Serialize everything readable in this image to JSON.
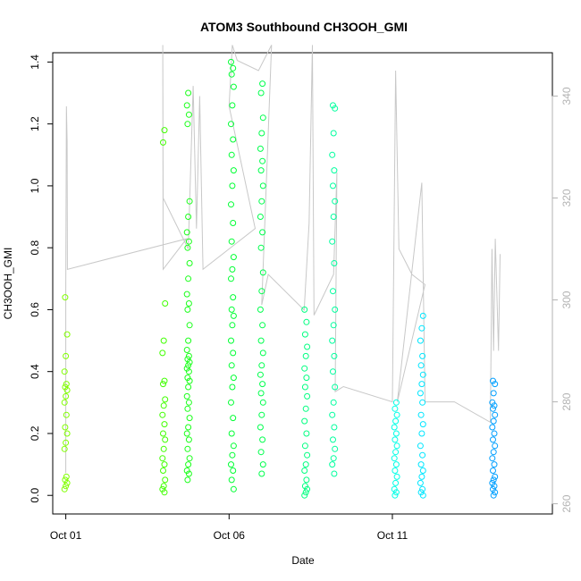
{
  "chart_data": {
    "type": "scatter",
    "title": "ATOM3 Southbound CH3OOH_GMI",
    "xlabel": "Date",
    "ylabel": "CH3OOH_GMI",
    "x_ticks": [
      "Oct 01",
      "Oct 06",
      "Oct 11"
    ],
    "x_tick_values": [
      1,
      6,
      11
    ],
    "xlim": [
      0.6,
      15.9
    ],
    "ylim": [
      -0.06,
      1.43
    ],
    "y_ticks": [
      "0.0",
      "0.2",
      "0.4",
      "0.6",
      "0.8",
      "1.0",
      "1.2",
      "1.4"
    ],
    "y_tick_values": [
      0,
      0.2,
      0.4,
      0.6,
      0.8,
      1.0,
      1.2,
      1.4
    ],
    "y2_ticks": [
      "260",
      "280",
      "300",
      "320",
      "340"
    ],
    "y2_tick_values": [
      260,
      280,
      300,
      320,
      340
    ],
    "y2lim": [
      258,
      348.5
    ],
    "grid": false,
    "legend": "none",
    "colors": {
      "secondary_line": "#c8c8c8",
      "right_axis": "#b3b3b3"
    },
    "point_groups": [
      {
        "x": 1.0,
        "color": "#80ff00",
        "values": [
          0.02,
          0.03,
          0.04,
          0.05,
          0.06,
          0.15,
          0.17,
          0.2,
          0.22,
          0.26,
          0.3,
          0.32,
          0.34,
          0.35,
          0.36,
          0.4,
          0.45,
          0.52,
          0.64
        ]
      },
      {
        "x": 4.0,
        "color": "#40ff00",
        "values": [
          0.01,
          0.02,
          0.03,
          0.05,
          0.08,
          0.1,
          0.12,
          0.15,
          0.18,
          0.2,
          0.23,
          0.26,
          0.29,
          0.31,
          0.36,
          0.37,
          0.46,
          0.5,
          0.62,
          1.14,
          1.18
        ]
      },
      {
        "x": 4.75,
        "color": "#1aff1a",
        "values": [
          0.05,
          0.07,
          0.08,
          0.1,
          0.12,
          0.15,
          0.18,
          0.2,
          0.22,
          0.25,
          0.28,
          0.3,
          0.32,
          0.35,
          0.37,
          0.38,
          0.4,
          0.41,
          0.42,
          0.43,
          0.44,
          0.45,
          0.47,
          0.5,
          0.55,
          0.6,
          0.62,
          0.65,
          0.7,
          0.75,
          0.8,
          0.82,
          0.85,
          0.9,
          0.95,
          1.2,
          1.23,
          1.26,
          1.3
        ]
      },
      {
        "x": 6.1,
        "color": "#00ff33",
        "values": [
          0.02,
          0.05,
          0.08,
          0.1,
          0.13,
          0.16,
          0.2,
          0.25,
          0.3,
          0.35,
          0.38,
          0.42,
          0.46,
          0.5,
          0.55,
          0.58,
          0.6,
          0.64,
          0.7,
          0.73,
          0.77,
          0.82,
          0.88,
          0.94,
          1.0,
          1.05,
          1.1,
          1.15,
          1.2,
          1.26,
          1.32,
          1.36,
          1.38,
          1.4
        ]
      },
      {
        "x": 7.0,
        "color": "#00ff4d",
        "values": [
          0.07,
          0.1,
          0.14,
          0.18,
          0.22,
          0.26,
          0.3,
          0.33,
          0.36,
          0.39,
          0.42,
          0.46,
          0.5,
          0.55,
          0.6,
          0.66,
          0.72,
          0.8,
          0.85,
          0.9,
          0.95,
          1.0,
          1.05,
          1.08,
          1.12,
          1.17,
          1.22,
          1.3,
          1.33
        ]
      },
      {
        "x": 8.35,
        "color": "#00ff80",
        "values": [
          0.0,
          0.01,
          0.02,
          0.03,
          0.05,
          0.08,
          0.1,
          0.13,
          0.16,
          0.2,
          0.24,
          0.28,
          0.32,
          0.35,
          0.38,
          0.41,
          0.45,
          0.48,
          0.52,
          0.56,
          0.6
        ]
      },
      {
        "x": 9.2,
        "color": "#00ff9e",
        "values": [
          0.07,
          0.1,
          0.12,
          0.15,
          0.18,
          0.22,
          0.26,
          0.3,
          0.35,
          0.4,
          0.45,
          0.5,
          0.55,
          0.6,
          0.66,
          0.75,
          0.82,
          0.9,
          0.95,
          1.0,
          1.05,
          1.1,
          1.17,
          1.25,
          1.26
        ]
      },
      {
        "x": 11.1,
        "color": "#00ffe6",
        "values": [
          0.0,
          0.01,
          0.02,
          0.04,
          0.06,
          0.08,
          0.1,
          0.12,
          0.14,
          0.16,
          0.18,
          0.2,
          0.22,
          0.24,
          0.26,
          0.28,
          0.3
        ]
      },
      {
        "x": 11.9,
        "color": "#00e6ff",
        "values": [
          0.0,
          0.01,
          0.02,
          0.04,
          0.06,
          0.08,
          0.1,
          0.13,
          0.16,
          0.2,
          0.23,
          0.26,
          0.3,
          0.33,
          0.36,
          0.39,
          0.42,
          0.45,
          0.5,
          0.54,
          0.58
        ]
      },
      {
        "x": 14.1,
        "color": "#009fff",
        "values": [
          0.0,
          0.01,
          0.02,
          0.03,
          0.04,
          0.05,
          0.06,
          0.08,
          0.1,
          0.12,
          0.14,
          0.16,
          0.18,
          0.2,
          0.22,
          0.24,
          0.26,
          0.28,
          0.29,
          0.3,
          0.33,
          0.36,
          0.37
        ]
      }
    ],
    "secondary_line": [
      [
        1.0,
        266
      ],
      [
        1.0,
        302
      ],
      [
        1.02,
        338
      ],
      [
        1.04,
        331
      ],
      [
        1.05,
        306
      ],
      [
        4.7,
        312
      ],
      [
        3.98,
        306
      ],
      [
        3.97,
        350
      ],
      [
        3.98,
        320
      ],
      [
        4.75,
        310
      ],
      [
        4.9,
        342
      ],
      [
        5.0,
        314
      ],
      [
        5.1,
        340
      ],
      [
        5.2,
        306
      ],
      [
        6.8,
        314
      ],
      [
        6.0,
        338
      ],
      [
        6.1,
        350
      ],
      [
        6.25,
        347
      ],
      [
        6.9,
        345
      ],
      [
        7.3,
        350
      ],
      [
        7.0,
        299
      ],
      [
        7.2,
        305
      ],
      [
        8.3,
        298
      ],
      [
        8.45,
        315
      ],
      [
        8.55,
        350
      ],
      [
        8.6,
        297
      ],
      [
        9.2,
        305
      ],
      [
        9.3,
        325
      ],
      [
        9.25,
        282
      ],
      [
        9.5,
        283
      ],
      [
        11.0,
        280
      ],
      [
        11.1,
        345
      ],
      [
        11.2,
        310
      ],
      [
        11.6,
        305
      ],
      [
        12.0,
        303
      ],
      [
        11.15,
        280
      ],
      [
        11.9,
        323
      ],
      [
        12.0,
        280
      ],
      [
        12.9,
        280
      ],
      [
        14.0,
        276
      ],
      [
        14.05,
        310
      ],
      [
        14.1,
        290
      ],
      [
        14.15,
        312
      ],
      [
        14.25,
        290
      ],
      [
        14.3,
        309
      ]
    ]
  }
}
